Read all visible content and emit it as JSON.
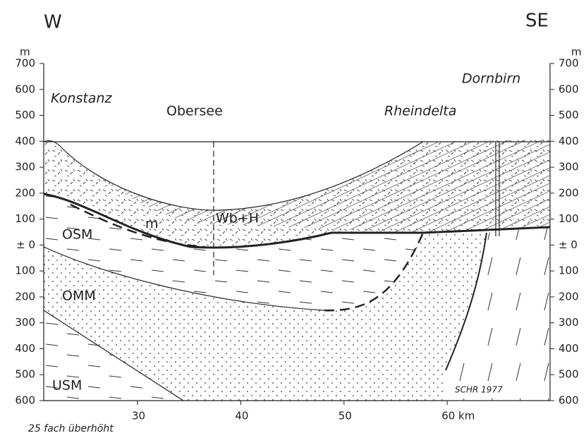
{
  "orientation": {
    "left": "W",
    "right": "SE"
  },
  "y_axis": {
    "unit": "m",
    "ticks": [
      "700",
      "600",
      "500",
      "400",
      "300",
      "200",
      "100",
      "± 0",
      "100",
      "200",
      "300",
      "400",
      "500",
      "600"
    ]
  },
  "x_axis": {
    "ticks": [
      "30",
      "40",
      "50",
      "60 km"
    ]
  },
  "places": {
    "konstanz": "Konstanz",
    "obersee": "Obersee",
    "rheindelta": "Rheindelta",
    "dornbirn": "Dornbirn"
  },
  "units": {
    "m": "m",
    "wbh": "Wb+H",
    "osm": "OSM",
    "omm": "OMM",
    "usm": "USM"
  },
  "credit": "SCHR 1977",
  "note": "25 fach überhöht"
}
